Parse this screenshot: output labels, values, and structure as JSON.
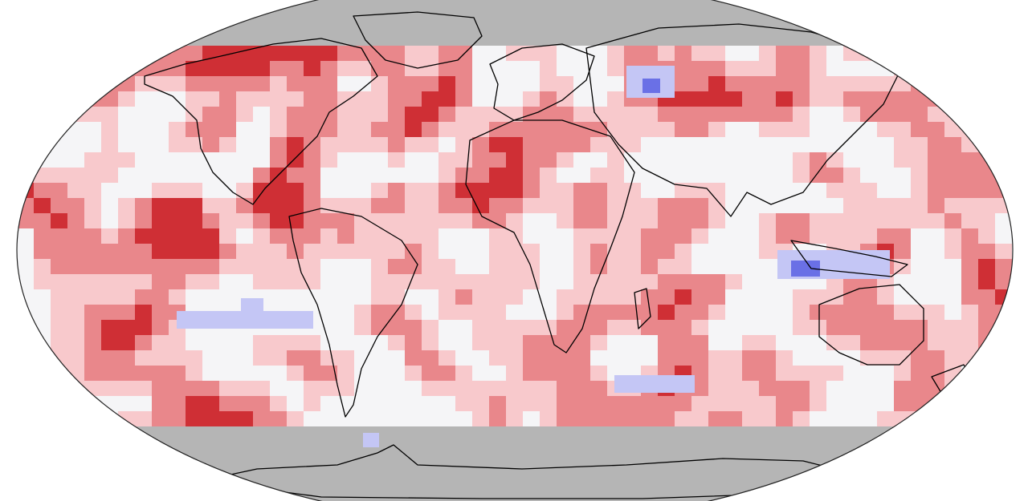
{
  "map": {
    "projection": "robinson-like",
    "colors": {
      "background": "#ffffff",
      "no_data": "#b5b5b5",
      "neutral": "#f5f5f7",
      "warm_1": "#f8c9cc",
      "warm_2": "#e9878b",
      "warm_3": "#cf2f35",
      "cool_1": "#c4c6f5",
      "cool_2": "#6a70e6",
      "coastline": "#000000",
      "border": "#2a2a2a",
      "outline": "#222222"
    },
    "legend": "none",
    "title": "",
    "notes": ""
  }
}
